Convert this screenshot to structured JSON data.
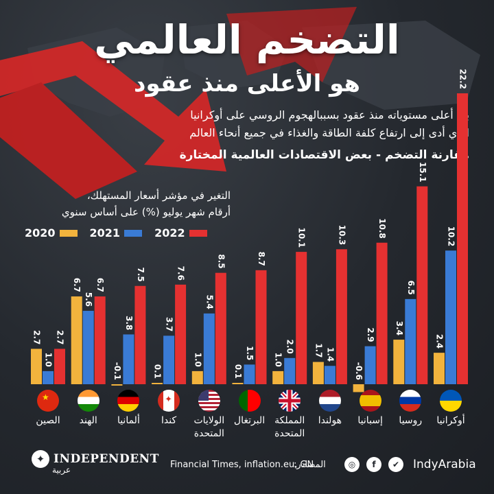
{
  "header": {
    "title": "التضخم العالمي",
    "subtitle": "هو الأعلى منذ عقود",
    "description_line1": "بلغ أعلى مستوياته منذ عقود بسببالهجوم الروسي على أوكرانيا",
    "description_line2": "الذي أدى إلى ارتفاع كلفة الطاقة والغذاء في جميع أنحاء العالم",
    "comparison": "مقارنة التضخم - بعض الاقتصادات العالمية المختارة"
  },
  "note": {
    "line1": "التغير في مؤشر أسعار المستهلك،",
    "line2": "أرقام شهر يوليو (%) على أساس سنوي"
  },
  "colors": {
    "y2020": "#f2b33d",
    "y2021": "#3a7bd5",
    "y2022": "#e53131",
    "background": "#24282e"
  },
  "chart_data": {
    "type": "bar",
    "title": "مقارنة التضخم - بعض الاقتصادات العالمية المختارة",
    "ylabel": "التغير في مؤشر أسعار المستهلك، أرقام شهر يوليو (%) على أساس سنوي",
    "ylim": [
      -1,
      23
    ],
    "categories": [
      "الصين",
      "الهند",
      "ألمانيا",
      "كندا",
      "الولايات المتحدة",
      "البرتغال",
      "المملكة المتحدة",
      "هولندا",
      "إسبانيا",
      "روسيا",
      "أوكرانيا"
    ],
    "series": [
      {
        "name": "2020",
        "values": [
          2.7,
          6.7,
          -0.1,
          0.1,
          1.0,
          0.1,
          1.0,
          1.7,
          -0.6,
          3.4,
          2.4
        ],
        "labels": [
          "2.7",
          "6.7",
          "-0.1",
          "0.1",
          "1.0",
          "0.1",
          "1.0",
          "1.7",
          "-0.6",
          "3.4",
          "2.4"
        ]
      },
      {
        "name": "2021",
        "values": [
          1.0,
          5.6,
          3.8,
          3.7,
          5.4,
          1.5,
          2.0,
          1.4,
          2.9,
          6.5,
          10.2
        ],
        "labels": [
          "1.0",
          "5.6",
          "3.8",
          "3.7",
          "5.4",
          "1.5",
          "2.0",
          "1.4",
          "2.9",
          "6.5",
          "10.2"
        ]
      },
      {
        "name": "2022",
        "values": [
          2.7,
          6.7,
          7.5,
          7.6,
          8.5,
          8.7,
          10.1,
          10.3,
          10.8,
          15.1,
          22.2
        ],
        "labels": [
          "2.7",
          "6.7",
          "7.5",
          "7.6",
          "8.5",
          "8.7",
          "10.1",
          "10.3",
          "10.8",
          "15.1",
          "22.2"
        ]
      }
    ],
    "country_labels": [
      [
        "الصين"
      ],
      [
        "الهند"
      ],
      [
        "ألمانيا"
      ],
      [
        "كندا"
      ],
      [
        "الولايات",
        "المتحدة"
      ],
      [
        "البرتغال"
      ],
      [
        "المملكة",
        "المتحدة"
      ],
      [
        "هولندا"
      ],
      [
        "إسبانيا"
      ],
      [
        "روسيا"
      ],
      [
        "أوكرانيا"
      ]
    ],
    "flags": [
      "china-flag-icon",
      "india-flag-icon",
      "germany-flag-icon",
      "canada-flag-icon",
      "usa-flag-icon",
      "portugal-flag-icon",
      "uk-flag-icon",
      "netherlands-flag-icon",
      "spain-flag-icon",
      "russia-flag-icon",
      "ukraine-flag-icon"
    ],
    "legend": [
      "2020",
      "2021",
      "2022"
    ],
    "legend_position": "top-left",
    "grid": false
  },
  "footer": {
    "brand": "INDEPENDENT",
    "brand_sub": "عربية",
    "sources_label": "المصادر:",
    "sources": "Financial Times, inflation.eu, GN",
    "handle": "IndyArabia",
    "icons": [
      "instagram-icon",
      "facebook-icon",
      "twitter-icon"
    ]
  }
}
